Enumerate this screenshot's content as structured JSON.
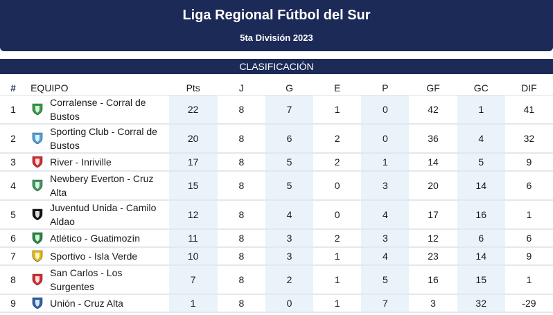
{
  "header": {
    "title": "Liga Regional Fútbol del Sur",
    "subtitle": "5ta División 2023"
  },
  "section_label": "CLASIFICACIÓN",
  "columns": {
    "pos": "#",
    "team": "EQUIPO",
    "pts": "Pts",
    "j": "J",
    "g": "G",
    "e": "E",
    "p": "P",
    "gf": "GF",
    "gc": "GC",
    "dif": "DIF"
  },
  "rows": [
    {
      "pos": "1",
      "team": "Corralense - Corral de Bustos",
      "pts": "22",
      "j": "8",
      "g": "7",
      "e": "1",
      "p": "0",
      "gf": "42",
      "gc": "1",
      "dif": "41",
      "crest": "green-leaf-crest-icon",
      "color": "#2f9e44"
    },
    {
      "pos": "2",
      "team": "Sporting Club - Corral de Bustos",
      "pts": "20",
      "j": "8",
      "g": "6",
      "e": "2",
      "p": "0",
      "gf": "36",
      "gc": "4",
      "dif": "32",
      "crest": "sky-blue-shield-icon",
      "color": "#4aa3df"
    },
    {
      "pos": "3",
      "team": "River - Inriville",
      "pts": "17",
      "j": "8",
      "g": "5",
      "e": "2",
      "p": "1",
      "gf": "14",
      "gc": "5",
      "dif": "9",
      "crest": "red-band-shield-icon",
      "color": "#d62828"
    },
    {
      "pos": "4",
      "team": "Newbery Everton - Cruz Alta",
      "pts": "15",
      "j": "8",
      "g": "5",
      "e": "0",
      "p": "3",
      "gf": "20",
      "gc": "14",
      "dif": "6",
      "crest": "green-round-crest-icon",
      "color": "#3a9a5b"
    },
    {
      "pos": "5",
      "team": "Juventud Unida - Camilo Aldao",
      "pts": "12",
      "j": "8",
      "g": "4",
      "e": "0",
      "p": "4",
      "gf": "17",
      "gc": "16",
      "dif": "1",
      "crest": "black-white-shield-icon",
      "color": "#111111"
    },
    {
      "pos": "6",
      "team": "Atlético - Guatimozín",
      "pts": "11",
      "j": "8",
      "g": "3",
      "e": "2",
      "p": "3",
      "gf": "12",
      "gc": "6",
      "dif": "6",
      "crest": "green-badge-icon",
      "color": "#1f8a3b"
    },
    {
      "pos": "7",
      "team": "Sportivo - Isla Verde",
      "pts": "10",
      "j": "8",
      "g": "3",
      "e": "1",
      "p": "4",
      "gf": "23",
      "gc": "14",
      "dif": "9",
      "crest": "yellow-black-shield-icon",
      "color": "#e5b800"
    },
    {
      "pos": "8",
      "team": "San Carlos - Los Surgentes",
      "pts": "7",
      "j": "8",
      "g": "2",
      "e": "1",
      "p": "5",
      "gf": "16",
      "gc": "15",
      "dif": "1",
      "crest": "red-stripes-shield-icon",
      "color": "#d62828"
    },
    {
      "pos": "9",
      "team": "Unión - Cruz Alta",
      "pts": "1",
      "j": "8",
      "g": "0",
      "e": "1",
      "p": "7",
      "gf": "3",
      "gc": "32",
      "dif": "-29",
      "crest": "blue-white-shield-icon",
      "color": "#2b5fb0"
    }
  ]
}
